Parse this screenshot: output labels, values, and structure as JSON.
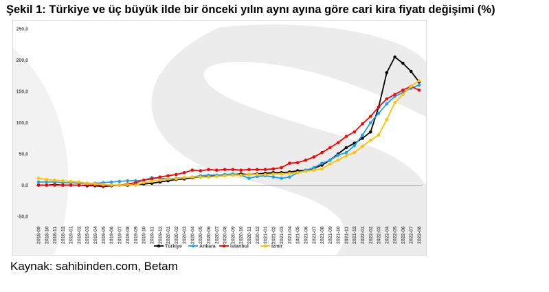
{
  "title": "Şekil 1: Türkiye ve üç büyük ilde bir önceki yılın aynı ayına göre cari kira fiyatı değişimi (%)",
  "source": "Kaynak: sahibinden.com, Betam",
  "colors": {
    "background_watermark": "#ececec",
    "axis": "#808080"
  },
  "chart_data": {
    "type": "line",
    "title": "",
    "xlabel": "",
    "ylabel": "",
    "ylim": [
      -50,
      250
    ],
    "y_ticks": [
      -50,
      0,
      50,
      100,
      150,
      200,
      250
    ],
    "y_tick_labels": [
      "-50,0",
      "0,0",
      "50,0",
      "100,0",
      "150,0",
      "200,0",
      "250,0"
    ],
    "grid": false,
    "legend_position": "bottom",
    "categories": [
      "2018-09",
      "2018-10",
      "2018-11",
      "2018-12",
      "2019-01",
      "2019-02",
      "2019-03",
      "2019-04",
      "2019-05",
      "2019-06",
      "2019-07",
      "2019-08",
      "2019-09",
      "2019-10",
      "2019-11",
      "2019-12",
      "2020-01",
      "2020-02",
      "2020-03",
      "2020-04",
      "2020-05",
      "2020-06",
      "2020-07",
      "2020-08",
      "2020-09",
      "2020-10",
      "2020-11",
      "2020-12",
      "2021-01",
      "2021-02",
      "2021-03",
      "2021-04",
      "2021-05",
      "2021-06",
      "2021-07",
      "2021-08",
      "2021-09",
      "2021-10",
      "2021-11",
      "2021-12",
      "2022-01",
      "2022-02",
      "2022-03",
      "2022-04",
      "2022-05",
      "2022-06",
      "2022-07",
      "2022-08"
    ],
    "series": [
      {
        "name": "Türkiye",
        "color": "#000000",
        "values": [
          0,
          0,
          1,
          0,
          0,
          0,
          -1,
          -1,
          -2,
          -1,
          0,
          0,
          1,
          2,
          3,
          5,
          7,
          9,
          10,
          12,
          13,
          14,
          15,
          16,
          17,
          18,
          17,
          18,
          19,
          20,
          20,
          21,
          23,
          24,
          27,
          32,
          40,
          50,
          60,
          67,
          75,
          85,
          125,
          180,
          205,
          195,
          182,
          165
        ]
      },
      {
        "name": "Ankara",
        "color": "#1aa3e8",
        "values": [
          5,
          5,
          5,
          4,
          4,
          3,
          3,
          3,
          4,
          5,
          6,
          7,
          7,
          8,
          12,
          11,
          10,
          11,
          12,
          13,
          15,
          16,
          16,
          17,
          18,
          16,
          11,
          14,
          15,
          13,
          11,
          13,
          20,
          24,
          28,
          35,
          40,
          48,
          52,
          63,
          80,
          100,
          115,
          130,
          142,
          148,
          155,
          160
        ]
      },
      {
        "name": "İstanbul",
        "color": "#ff0000",
        "values": [
          0,
          0,
          0,
          0,
          0,
          0,
          0,
          0,
          -1,
          0,
          0,
          2,
          4,
          8,
          10,
          13,
          15,
          17,
          20,
          24,
          23,
          25,
          24,
          25,
          25,
          24,
          25,
          25,
          25,
          26,
          28,
          35,
          36,
          40,
          45,
          52,
          60,
          68,
          78,
          85,
          98,
          110,
          125,
          138,
          145,
          152,
          158,
          152
        ]
      },
      {
        "name": "İzmir",
        "color": "#ffc000",
        "values": [
          11,
          9,
          8,
          7,
          6,
          5,
          3,
          2,
          1,
          0,
          0,
          1,
          0,
          4,
          6,
          8,
          10,
          10,
          12,
          13,
          13,
          13,
          14,
          15,
          16,
          16,
          17,
          17,
          17,
          18,
          18,
          19,
          20,
          22,
          24,
          26,
          34,
          40,
          47,
          52,
          62,
          72,
          80,
          105,
          132,
          145,
          158,
          167
        ]
      }
    ]
  }
}
